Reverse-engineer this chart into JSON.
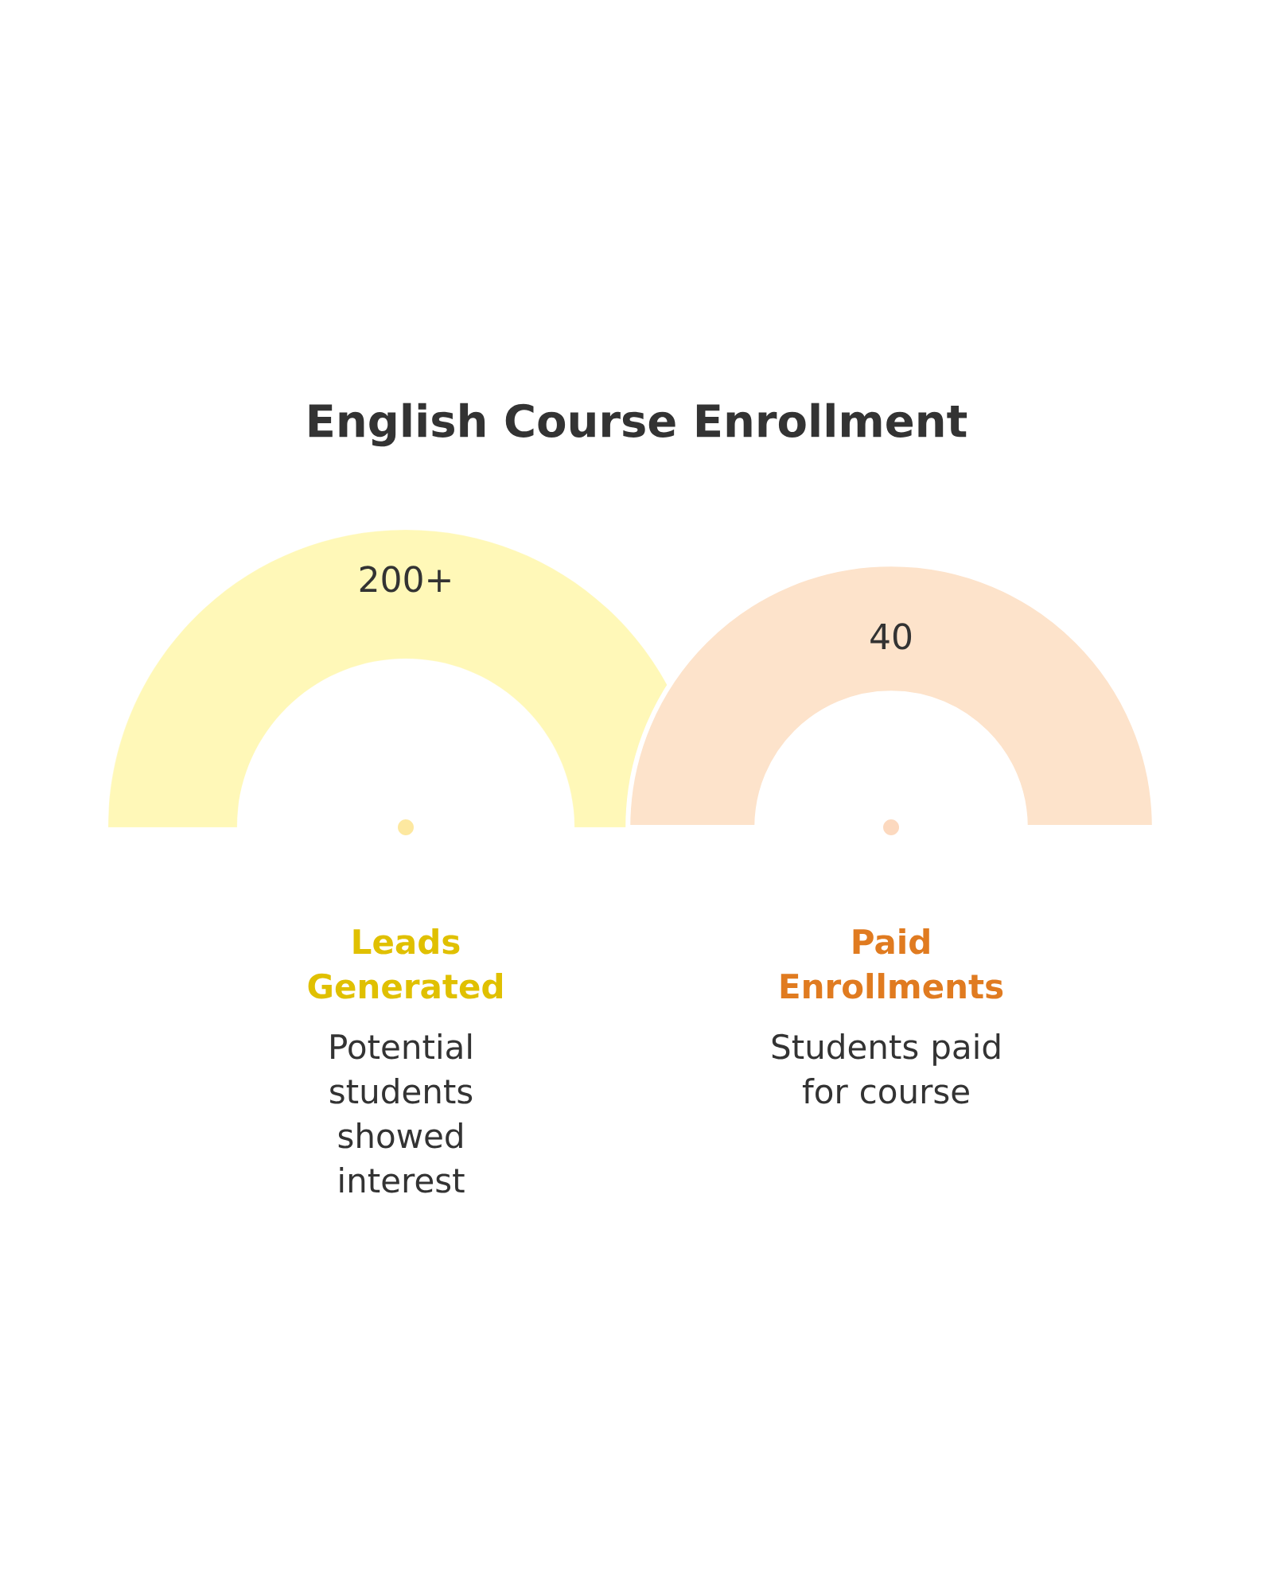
{
  "chart_data": {
    "type": "other",
    "title": "English Course Enrollment",
    "categories": [
      "Leads Generated",
      "Paid Enrollments"
    ],
    "values": [
      200,
      40
    ],
    "value_labels": [
      "200+",
      "40"
    ],
    "colors": [
      "#fff8b8",
      "#fde3cb"
    ],
    "annotations": [
      "Potential students showed interest",
      "Students paid for course"
    ]
  }
}
